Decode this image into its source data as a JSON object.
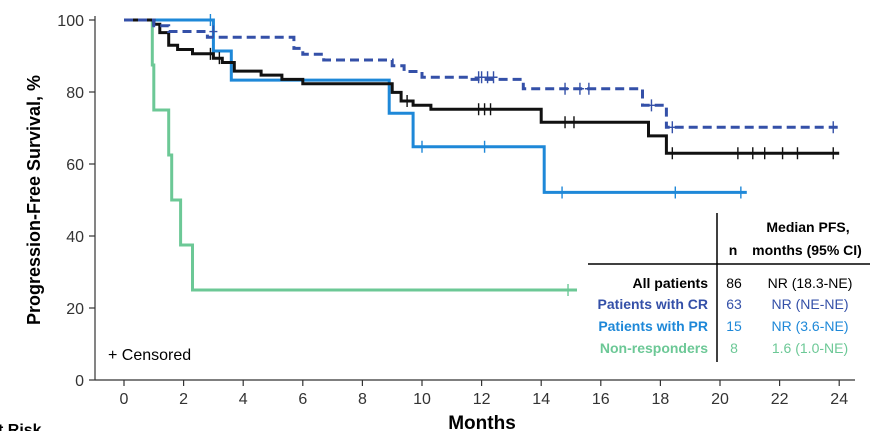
{
  "chart_data": {
    "type": "line",
    "title": "",
    "xlabel": "Months",
    "ylabel": "Progression-Free Survival, %",
    "xlim": [
      0,
      24.5
    ],
    "ylim": [
      0,
      100
    ],
    "xticks": [
      0,
      2,
      4,
      6,
      8,
      10,
      12,
      14,
      16,
      18,
      20,
      22,
      24
    ],
    "yticks": [
      0,
      20,
      40,
      60,
      80,
      100
    ],
    "censor_note": "+ Censored",
    "cut_off_text": "t Risk",
    "legend": {
      "header_n": "n",
      "header_median_1": "Median PFS,",
      "header_median_2": "months (95% CI)"
    },
    "series": [
      {
        "name": "All patients",
        "n": "86",
        "median": "NR (18.3-NE)",
        "color": "#111111",
        "dash": "none",
        "steps": [
          [
            0,
            100
          ],
          [
            1.0,
            100
          ],
          [
            1.0,
            98.8
          ],
          [
            1.2,
            98.8
          ],
          [
            1.2,
            96.5
          ],
          [
            1.5,
            96.5
          ],
          [
            1.5,
            93.0
          ],
          [
            1.8,
            93.0
          ],
          [
            1.8,
            91.8
          ],
          [
            2.3,
            91.8
          ],
          [
            2.3,
            90.6
          ],
          [
            3.0,
            90.6
          ],
          [
            3.0,
            89.4
          ],
          [
            3.3,
            89.4
          ],
          [
            3.3,
            88.2
          ],
          [
            3.7,
            88.2
          ],
          [
            3.7,
            85.8
          ],
          [
            4.6,
            85.8
          ],
          [
            4.6,
            84.7
          ],
          [
            5.3,
            84.7
          ],
          [
            5.3,
            83.5
          ],
          [
            6.0,
            83.5
          ],
          [
            6.0,
            82.3
          ],
          [
            9.0,
            82.3
          ],
          [
            9.0,
            79.9
          ],
          [
            9.3,
            79.9
          ],
          [
            9.3,
            77.5
          ],
          [
            9.7,
            77.5
          ],
          [
            9.7,
            76.3
          ],
          [
            10.3,
            76.3
          ],
          [
            10.3,
            75.2
          ],
          [
            14.0,
            75.2
          ],
          [
            14.0,
            71.6
          ],
          [
            17.6,
            71.6
          ],
          [
            17.6,
            67.8
          ],
          [
            18.2,
            67.8
          ],
          [
            18.2,
            63.0
          ],
          [
            24.0,
            63.0
          ]
        ],
        "censored": [
          [
            2.9,
            90.6
          ],
          [
            3.2,
            89.4
          ],
          [
            9.5,
            77.5
          ],
          [
            11.9,
            75.2
          ],
          [
            12.1,
            75.2
          ],
          [
            12.3,
            75.2
          ],
          [
            14.8,
            71.6
          ],
          [
            15.1,
            71.6
          ],
          [
            18.4,
            63.0
          ],
          [
            20.6,
            63.0
          ],
          [
            21.1,
            63.0
          ],
          [
            21.5,
            63.0
          ],
          [
            22.1,
            63.0
          ],
          [
            22.6,
            63.0
          ],
          [
            23.8,
            63.0
          ]
        ]
      },
      {
        "name": "Patients with CR",
        "n": "63",
        "median": "NR (NE-NE)",
        "color": "#3450a8",
        "dash": "9,5",
        "steps": [
          [
            0,
            100
          ],
          [
            1.0,
            100
          ],
          [
            1.0,
            98.4
          ],
          [
            1.5,
            98.4
          ],
          [
            1.5,
            96.8
          ],
          [
            2.8,
            96.8
          ],
          [
            2.8,
            95.2
          ],
          [
            5.7,
            95.2
          ],
          [
            5.7,
            92.1
          ],
          [
            6.0,
            92.1
          ],
          [
            6.0,
            90.5
          ],
          [
            6.7,
            90.5
          ],
          [
            6.7,
            88.9
          ],
          [
            9.0,
            88.9
          ],
          [
            9.0,
            87.3
          ],
          [
            9.4,
            87.3
          ],
          [
            9.4,
            85.7
          ],
          [
            10.0,
            85.7
          ],
          [
            10.0,
            84.1
          ],
          [
            11.6,
            84.1
          ],
          [
            11.6,
            83.5
          ],
          [
            13.4,
            83.5
          ],
          [
            13.4,
            80.9
          ],
          [
            17.4,
            80.9
          ],
          [
            17.4,
            76.3
          ],
          [
            18.2,
            76.3
          ],
          [
            18.2,
            70.2
          ],
          [
            24.0,
            70.2
          ]
        ],
        "censored": [
          [
            3.0,
            96.8
          ],
          [
            11.9,
            84.1
          ],
          [
            12.0,
            84.1
          ],
          [
            12.2,
            84.1
          ],
          [
            12.4,
            84.1
          ],
          [
            14.8,
            80.9
          ],
          [
            15.3,
            80.9
          ],
          [
            15.6,
            80.9
          ],
          [
            17.7,
            76.3
          ],
          [
            18.4,
            70.2
          ],
          [
            23.8,
            70.2
          ]
        ]
      },
      {
        "name": "Patients with PR",
        "n": "15",
        "median": "NR (3.6-NE)",
        "color": "#1e88d8",
        "dash": "none",
        "steps": [
          [
            0,
            100
          ],
          [
            3.0,
            100
          ],
          [
            3.0,
            91.4
          ],
          [
            3.6,
            91.4
          ],
          [
            3.6,
            83.3
          ],
          [
            8.9,
            83.3
          ],
          [
            8.9,
            74.1
          ],
          [
            9.7,
            74.1
          ],
          [
            9.7,
            64.8
          ],
          [
            14.1,
            64.8
          ],
          [
            14.1,
            52.1
          ],
          [
            20.9,
            52.1
          ]
        ],
        "censored": [
          [
            2.9,
            100
          ],
          [
            10.0,
            64.8
          ],
          [
            12.1,
            64.8
          ],
          [
            14.7,
            52.1
          ],
          [
            18.5,
            52.1
          ],
          [
            20.7,
            52.1
          ]
        ]
      },
      {
        "name": "Non-responders",
        "n": "8",
        "median": "1.6 (1.0-NE)",
        "color": "#6cc896",
        "dash": "none",
        "steps": [
          [
            0,
            100
          ],
          [
            0.95,
            100
          ],
          [
            0.95,
            87.5
          ],
          [
            1.0,
            87.5
          ],
          [
            1.0,
            75.0
          ],
          [
            1.5,
            75.0
          ],
          [
            1.5,
            62.5
          ],
          [
            1.6,
            62.5
          ],
          [
            1.6,
            50.0
          ],
          [
            1.9,
            50.0
          ],
          [
            1.9,
            37.5
          ],
          [
            2.3,
            37.5
          ],
          [
            2.3,
            25.0
          ],
          [
            15.2,
            25.0
          ]
        ],
        "censored": [
          [
            14.9,
            25.0
          ]
        ]
      }
    ]
  }
}
